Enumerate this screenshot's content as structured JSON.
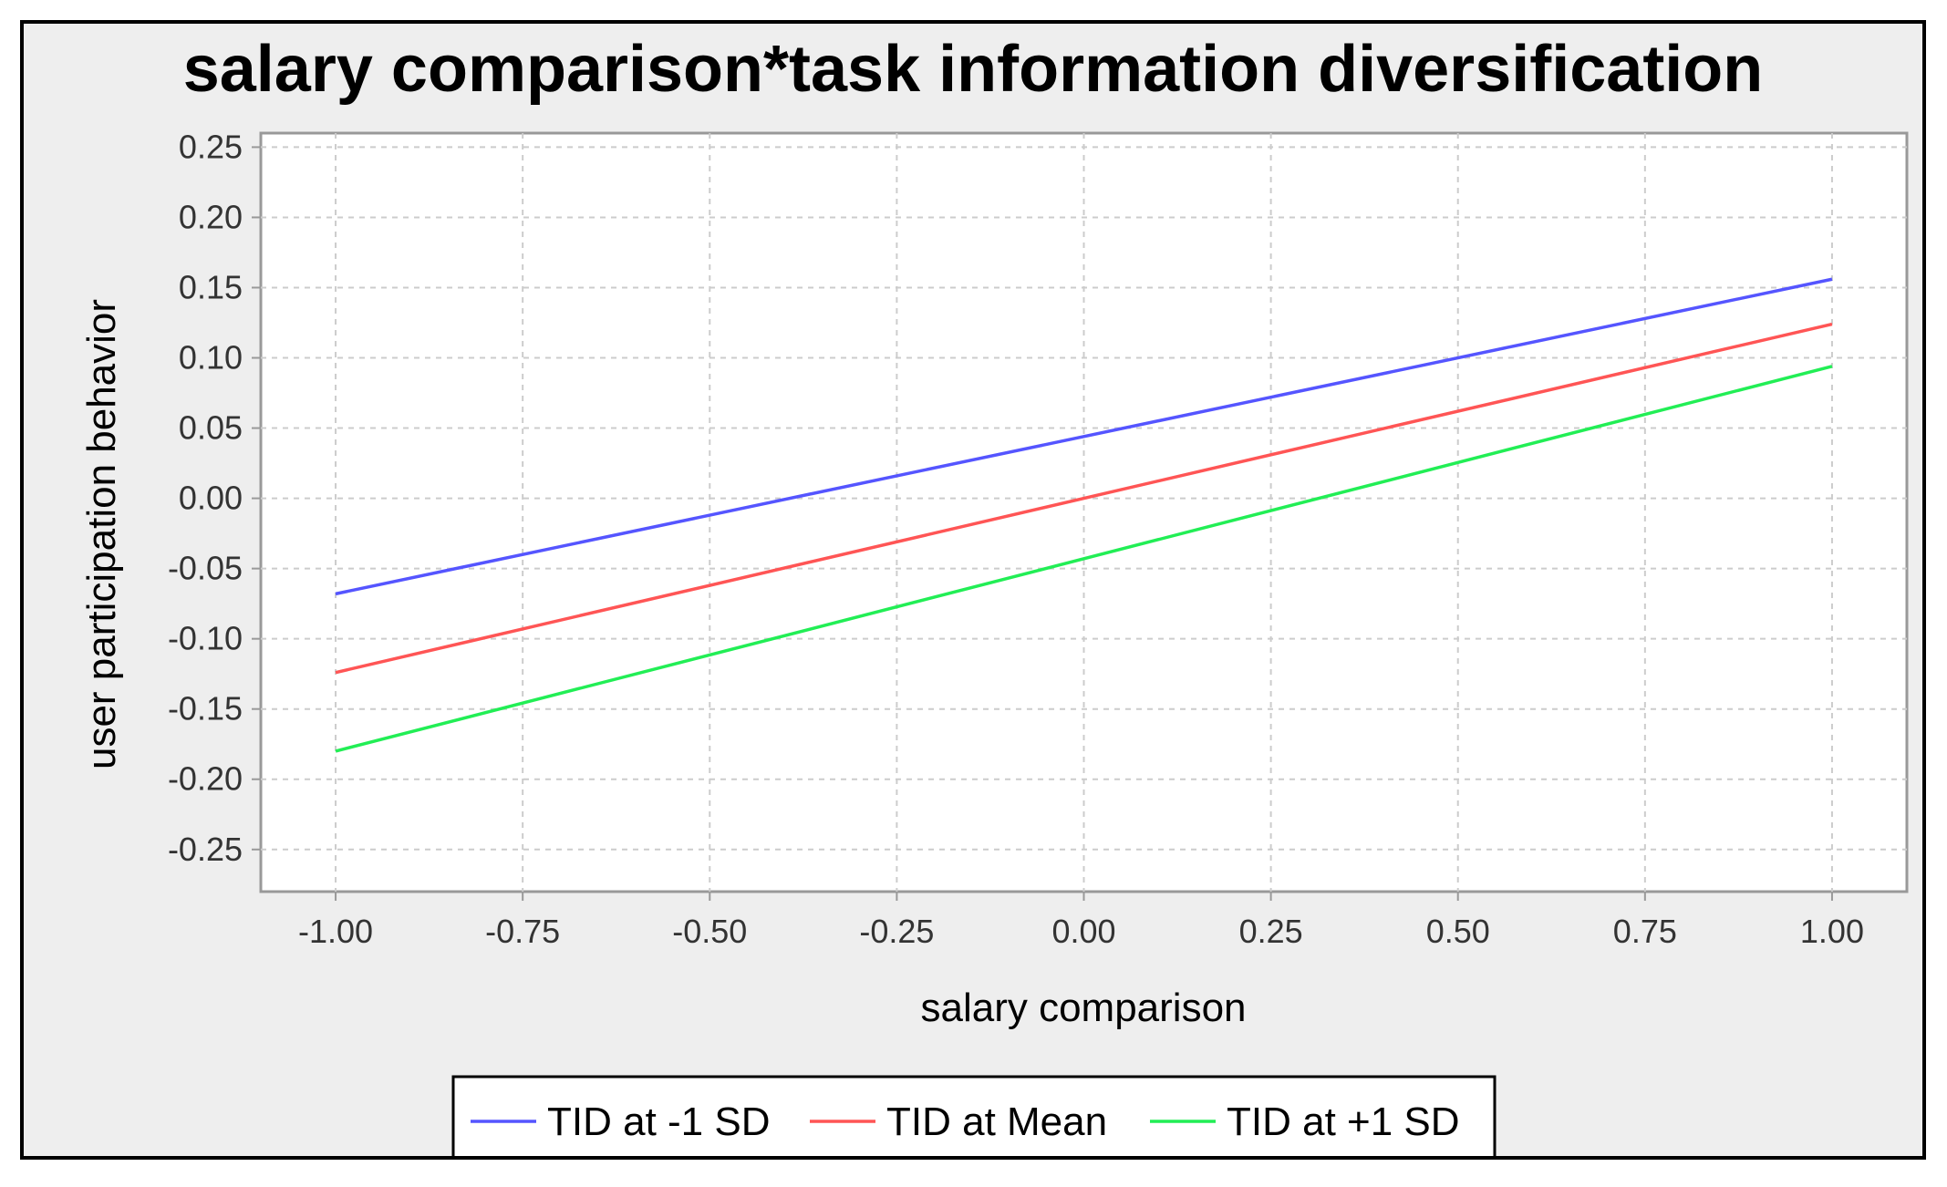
{
  "chart_data": {
    "type": "line",
    "title": "salary comparison*task information diversification",
    "xlabel": "salary comparison",
    "ylabel": "user participation behavior",
    "xlim": [
      -1.1,
      1.1
    ],
    "ylim": [
      -0.28,
      0.26
    ],
    "x_ticks": [
      -1.0,
      -0.75,
      -0.5,
      -0.25,
      0.0,
      0.25,
      0.5,
      0.75,
      1.0
    ],
    "x_tick_labels": [
      "-1.00",
      "-0.75",
      "-0.50",
      "-0.25",
      "0.00",
      "0.25",
      "0.50",
      "0.75",
      "1.00"
    ],
    "y_ticks": [
      0.25,
      0.2,
      0.15,
      0.1,
      0.05,
      0.0,
      -0.05,
      -0.1,
      -0.15,
      -0.2,
      -0.25
    ],
    "y_tick_labels": [
      "0.25",
      "0.20",
      "0.15",
      "0.10",
      "0.05",
      "0.00",
      "-0.05",
      "-0.10",
      "-0.15",
      "-0.20",
      "-0.25"
    ],
    "grid": true,
    "legend_position": "bottom",
    "x": [
      -1.0,
      1.0
    ],
    "series": [
      {
        "name": "TID at -1 SD",
        "color": "#5555ff",
        "values": [
          -0.068,
          0.156
        ]
      },
      {
        "name": "TID at Mean",
        "color": "#ff5555",
        "values": [
          -0.124,
          0.124
        ]
      },
      {
        "name": "TID at +1 SD",
        "color": "#22ee55",
        "values": [
          -0.18,
          0.094
        ]
      }
    ]
  }
}
